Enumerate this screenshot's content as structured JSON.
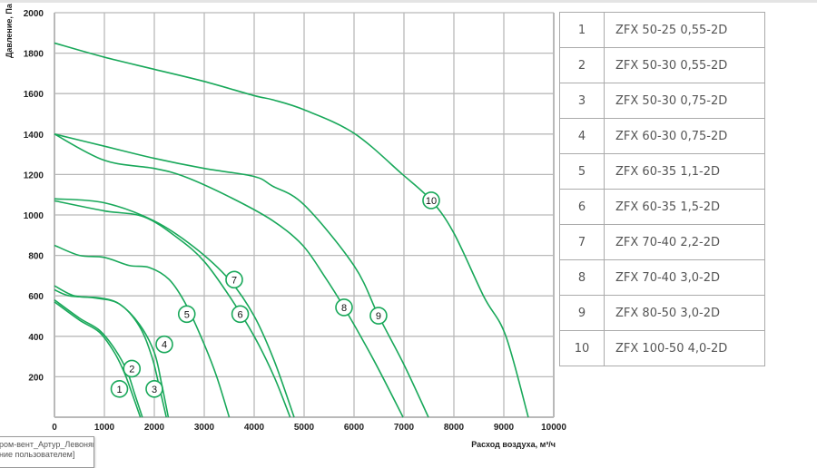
{
  "chart_data": {
    "type": "line",
    "title": "",
    "xlabel": "Расход воздуха, м³/ч",
    "ylabel": "Давление, Па",
    "xlim": [
      0,
      10000
    ],
    "ylim": [
      0,
      2000
    ],
    "x_ticks": [
      "0",
      "1000",
      "2000",
      "3000",
      "4000",
      "5000",
      "6000",
      "7000",
      "8000",
      "9000",
      "10000"
    ],
    "y_ticks": [
      "200",
      "400",
      "600",
      "800",
      "1000",
      "1200",
      "1400",
      "1600",
      "1800",
      "2000"
    ],
    "grid": true,
    "line_color": "#19a85a",
    "series": [
      {
        "name": "1",
        "points": [
          [
            0,
            570
          ],
          [
            500,
            480
          ],
          [
            900,
            420
          ],
          [
            1200,
            320
          ],
          [
            1400,
            220
          ],
          [
            1550,
            120
          ],
          [
            1720,
            0
          ]
        ],
        "label_at": [
          1300,
          140
        ]
      },
      {
        "name": "2",
        "points": [
          [
            0,
            580
          ],
          [
            500,
            490
          ],
          [
            900,
            430
          ],
          [
            1200,
            340
          ],
          [
            1450,
            230
          ],
          [
            1600,
            120
          ],
          [
            1760,
            0
          ]
        ],
        "label_at": [
          1550,
          240
        ]
      },
      {
        "name": "3",
        "points": [
          [
            0,
            630
          ],
          [
            300,
            600
          ],
          [
            800,
            590
          ],
          [
            1300,
            560
          ],
          [
            1700,
            450
          ],
          [
            1950,
            300
          ],
          [
            2100,
            150
          ],
          [
            2240,
            0
          ]
        ],
        "label_at": [
          2000,
          140
        ]
      },
      {
        "name": "4",
        "points": [
          [
            0,
            650
          ],
          [
            400,
            600
          ],
          [
            900,
            590
          ],
          [
            1300,
            560
          ],
          [
            1700,
            460
          ],
          [
            2000,
            320
          ],
          [
            2150,
            160
          ],
          [
            2280,
            0
          ]
        ],
        "label_at": [
          2200,
          360
        ]
      },
      {
        "name": "5",
        "points": [
          [
            0,
            850
          ],
          [
            500,
            800
          ],
          [
            1000,
            790
          ],
          [
            1500,
            750
          ],
          [
            1900,
            740
          ],
          [
            2300,
            680
          ],
          [
            2650,
            550
          ],
          [
            3000,
            360
          ],
          [
            3250,
            200
          ],
          [
            3500,
            0
          ]
        ],
        "label_at": [
          2650,
          510
        ]
      },
      {
        "name": "6",
        "points": [
          [
            0,
            1070
          ],
          [
            1000,
            1020
          ],
          [
            1800,
            990
          ],
          [
            2500,
            880
          ],
          [
            3000,
            770
          ],
          [
            3500,
            600
          ],
          [
            4000,
            400
          ],
          [
            4400,
            200
          ],
          [
            4720,
            0
          ]
        ],
        "label_at": [
          3720,
          510
        ]
      },
      {
        "name": "7",
        "points": [
          [
            0,
            1080
          ],
          [
            1000,
            1060
          ],
          [
            2000,
            970
          ],
          [
            2800,
            840
          ],
          [
            3500,
            680
          ],
          [
            4000,
            500
          ],
          [
            4400,
            280
          ],
          [
            4800,
            0
          ]
        ],
        "label_at": [
          3600,
          680
        ]
      },
      {
        "name": "8",
        "points": [
          [
            0,
            1400
          ],
          [
            1000,
            1270
          ],
          [
            2000,
            1230
          ],
          [
            2600,
            1190
          ],
          [
            3500,
            1090
          ],
          [
            4364,
            973
          ],
          [
            4964,
            852
          ],
          [
            5400,
            700
          ],
          [
            5800,
            543
          ],
          [
            6400,
            280
          ],
          [
            6982,
            0
          ]
        ],
        "label_at": [
          5800,
          543
        ]
      },
      {
        "name": "9",
        "points": [
          [
            0,
            1400
          ],
          [
            1000,
            1340
          ],
          [
            2000,
            1280
          ],
          [
            3000,
            1230
          ],
          [
            4000,
            1190
          ],
          [
            4364,
            1143
          ],
          [
            5000,
            1050
          ],
          [
            6000,
            749
          ],
          [
            6490,
            502
          ],
          [
            7000,
            260
          ],
          [
            7490,
            0
          ]
        ],
        "label_at": [
          6490,
          502
        ]
      },
      {
        "name": "10",
        "points": [
          [
            0,
            1850
          ],
          [
            1000,
            1780
          ],
          [
            2000,
            1720
          ],
          [
            3000,
            1660
          ],
          [
            4000,
            1590
          ],
          [
            4364,
            1570
          ],
          [
            5000,
            1520
          ],
          [
            6000,
            1404
          ],
          [
            6964,
            1202
          ],
          [
            7545,
            1072
          ],
          [
            8000,
            910
          ],
          [
            8600,
            596
          ],
          [
            9036,
            404
          ],
          [
            9490,
            0
          ]
        ],
        "label_at": [
          7545,
          1072
        ]
      }
    ]
  },
  "legend_table": [
    {
      "num": "1",
      "model": "ZFX 50-25 0,55-2D"
    },
    {
      "num": "2",
      "model": "ZFX 50-30 0,55-2D"
    },
    {
      "num": "3",
      "model": "ZFX 50-30 0,75-2D"
    },
    {
      "num": "4",
      "model": "ZFX 60-30 0,75-2D"
    },
    {
      "num": "5",
      "model": "ZFX 60-35 1,1-2D"
    },
    {
      "num": "6",
      "model": "ZFX 60-35 1,5-2D"
    },
    {
      "num": "7",
      "model": "ZFX 70-40 2,2-2D"
    },
    {
      "num": "8",
      "model": "ZFX 70-40 3,0-2D"
    },
    {
      "num": "9",
      "model": "ZFX 80-50 3,0-2D"
    },
    {
      "num": "10",
      "model": "ZFX 100-50 4,0-2D"
    }
  ],
  "tooltip": {
    "line1": "ром-вент_Артур_Левонян-",
    "line2": "ние пользователем]"
  }
}
